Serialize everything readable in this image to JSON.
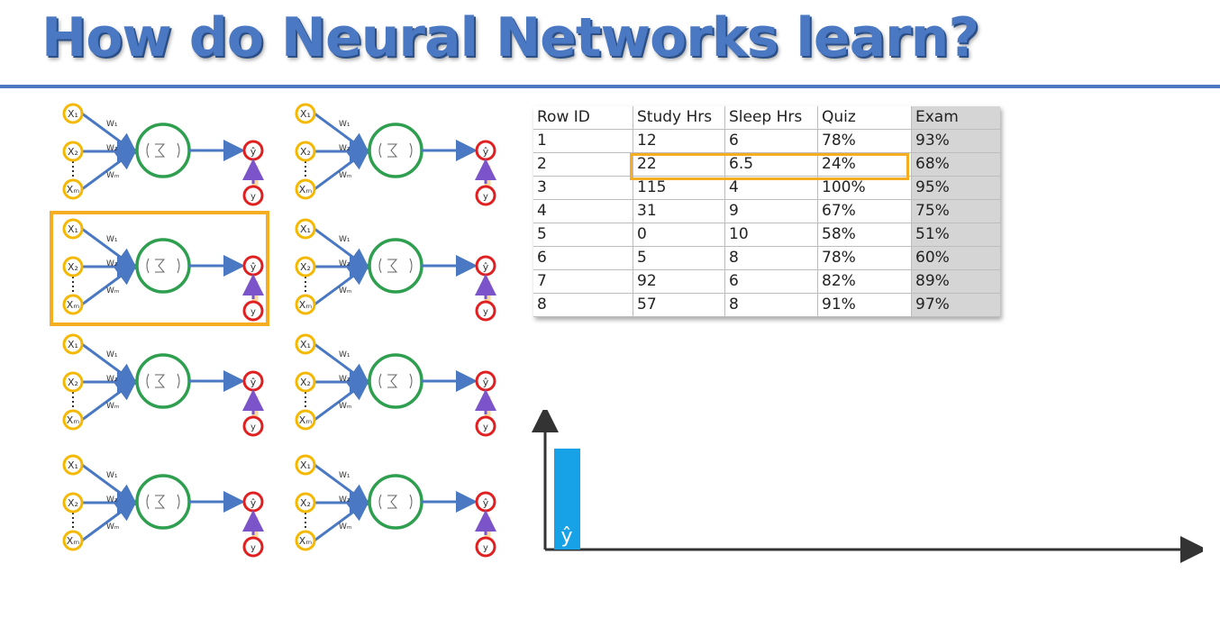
{
  "title": "How do Neural Networks learn?",
  "network": {
    "inputs": [
      "X₁",
      "X₂",
      "Xₘ"
    ],
    "weights": [
      "W₁",
      "W₂",
      "Wₘ"
    ],
    "output_pred": "ŷ",
    "output_actual": "y",
    "colors": {
      "input": "#f5b800",
      "neuron": "#2e9e4f",
      "output": "#e02020",
      "arrow": "#4a78c2",
      "backprop": "#7b54c9"
    }
  },
  "highlight_color": "#f5ae22",
  "table": {
    "headers": [
      "Row ID",
      "Study Hrs",
      "Sleep Hrs",
      "Quiz",
      "Exam"
    ],
    "rows": [
      [
        "1",
        "12",
        "6",
        "78%",
        "93%"
      ],
      [
        "2",
        "22",
        "6.5",
        "24%",
        "68%"
      ],
      [
        "3",
        "115",
        "4",
        "100%",
        "95%"
      ],
      [
        "4",
        "31",
        "9",
        "67%",
        "75%"
      ],
      [
        "5",
        "0",
        "10",
        "58%",
        "51%"
      ],
      [
        "6",
        "5",
        "8",
        "78%",
        "60%"
      ],
      [
        "7",
        "92",
        "6",
        "82%",
        "89%"
      ],
      [
        "8",
        "57",
        "8",
        "91%",
        "97%"
      ]
    ],
    "highlighted_row": 2
  },
  "chart_data": {
    "type": "bar",
    "categories": [
      "ŷ"
    ],
    "values": [
      1
    ],
    "bar_color": "#17a2e8",
    "grid": false
  }
}
